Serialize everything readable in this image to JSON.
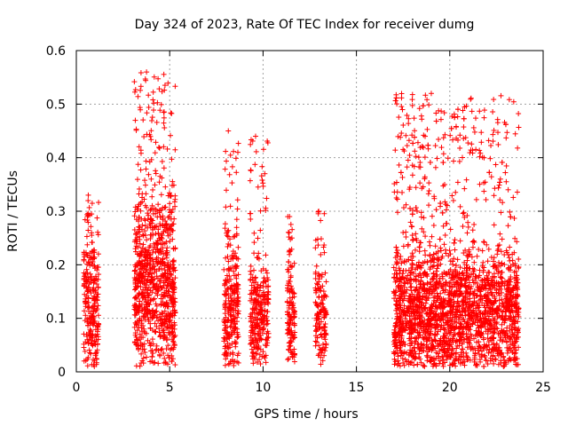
{
  "chart_data": {
    "type": "scatter",
    "title": "Day 324 of 2023, Rate Of TEC Index for receiver dumg",
    "xlabel": "GPS time / hours",
    "ylabel": "ROTI / TECUs",
    "xlim": [
      0,
      25
    ],
    "ylim": [
      0,
      0.6
    ],
    "x_ticks": [
      "0",
      "5",
      "10",
      "15",
      "20",
      "25"
    ],
    "y_ticks": [
      "0",
      "0.1",
      "0.2",
      "0.3",
      "0.4",
      "0.5",
      "0.6"
    ],
    "grid": true,
    "marker": "+",
    "color": "#ff0000",
    "series": [
      {
        "name": "ROTI",
        "clusters": [
          {
            "x_start": 0.4,
            "x_end": 1.2,
            "y_mid": 0.11,
            "y_spread": 0.09,
            "y_peak": 0.33,
            "density": 260
          },
          {
            "x_start": 3.1,
            "x_end": 5.3,
            "y_mid": 0.15,
            "y_spread": 0.12,
            "y_peak": 0.56,
            "density": 900
          },
          {
            "x_start": 7.9,
            "x_end": 8.7,
            "y_mid": 0.11,
            "y_spread": 0.09,
            "y_peak": 0.45,
            "density": 260
          },
          {
            "x_start": 9.3,
            "x_end": 10.3,
            "y_mid": 0.09,
            "y_spread": 0.07,
            "y_peak": 0.44,
            "density": 280
          },
          {
            "x_start": 11.3,
            "x_end": 11.7,
            "y_mid": 0.09,
            "y_spread": 0.07,
            "y_peak": 0.29,
            "density": 130
          },
          {
            "x_start": 12.8,
            "x_end": 13.4,
            "y_mid": 0.09,
            "y_spread": 0.07,
            "y_peak": 0.3,
            "density": 140
          },
          {
            "x_start": 17.0,
            "x_end": 23.7,
            "y_mid": 0.1,
            "y_spread": 0.09,
            "y_peak": 0.52,
            "density": 2400
          }
        ]
      }
    ]
  }
}
